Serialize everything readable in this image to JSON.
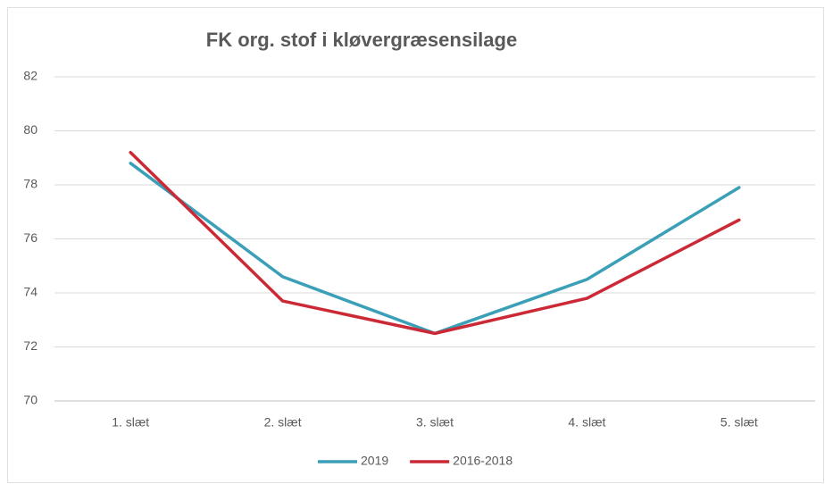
{
  "chart_data": {
    "type": "line",
    "title": "FK org. stof i kløvergræsensilage",
    "categories": [
      "1. slæt",
      "2. slæt",
      "3. slæt",
      "4. slæt",
      "5. slæt"
    ],
    "series": [
      {
        "name": "2019",
        "color": "#3a9fb7",
        "values": [
          78.8,
          74.6,
          72.5,
          74.5,
          77.9
        ]
      },
      {
        "name": "2016-2018",
        "color": "#cc2936",
        "values": [
          79.2,
          73.7,
          72.5,
          73.8,
          76.7
        ]
      }
    ],
    "ylim": [
      70,
      82
    ],
    "yticks": [
      70,
      72,
      74,
      76,
      78,
      80,
      82
    ],
    "grid": true,
    "legend": "bottom"
  }
}
